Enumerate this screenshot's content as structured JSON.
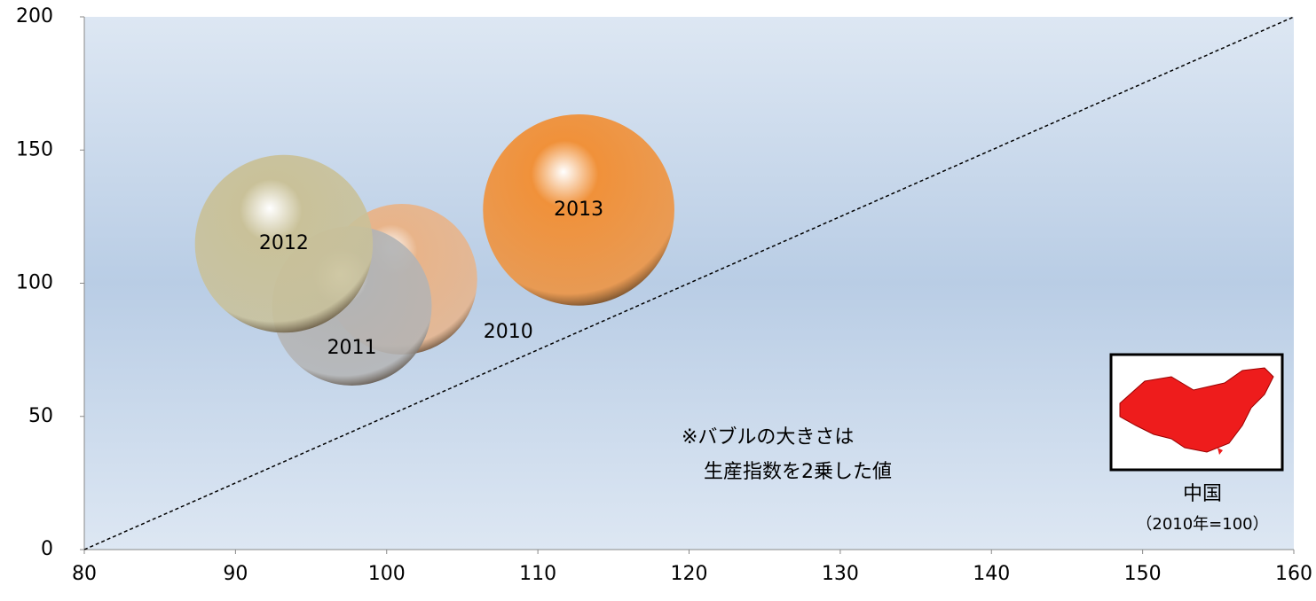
{
  "chart_data": {
    "type": "bubble",
    "points": [
      {
        "label": "2010",
        "x": 101,
        "y": 101.5,
        "size": 10000,
        "color": "#e8b48a"
      },
      {
        "label": "2011",
        "x": 97.7,
        "y": 91.5,
        "size": 11200,
        "color": "#b4b4b4"
      },
      {
        "label": "2012",
        "x": 93.2,
        "y": 114.8,
        "size": 13900,
        "color": "#c9c199"
      },
      {
        "label": "2013",
        "x": 112.7,
        "y": 127.5,
        "size": 16100,
        "color": "#f0913a"
      }
    ],
    "reference_line": {
      "x": [
        80,
        160
      ],
      "y": [
        0,
        200
      ]
    },
    "xlim": [
      80,
      160
    ],
    "xticks": [
      80,
      90,
      100,
      110,
      120,
      130,
      140,
      150,
      160
    ],
    "ylim": [
      0,
      200
    ],
    "yticks": [
      0,
      50,
      100,
      150,
      200
    ],
    "annotations": {
      "note_line1": "※バブルの大きさは",
      "note_line2": "生産指数を2乗した値",
      "inset_caption": "中国",
      "inset_note": "（2010年=100）"
    }
  }
}
